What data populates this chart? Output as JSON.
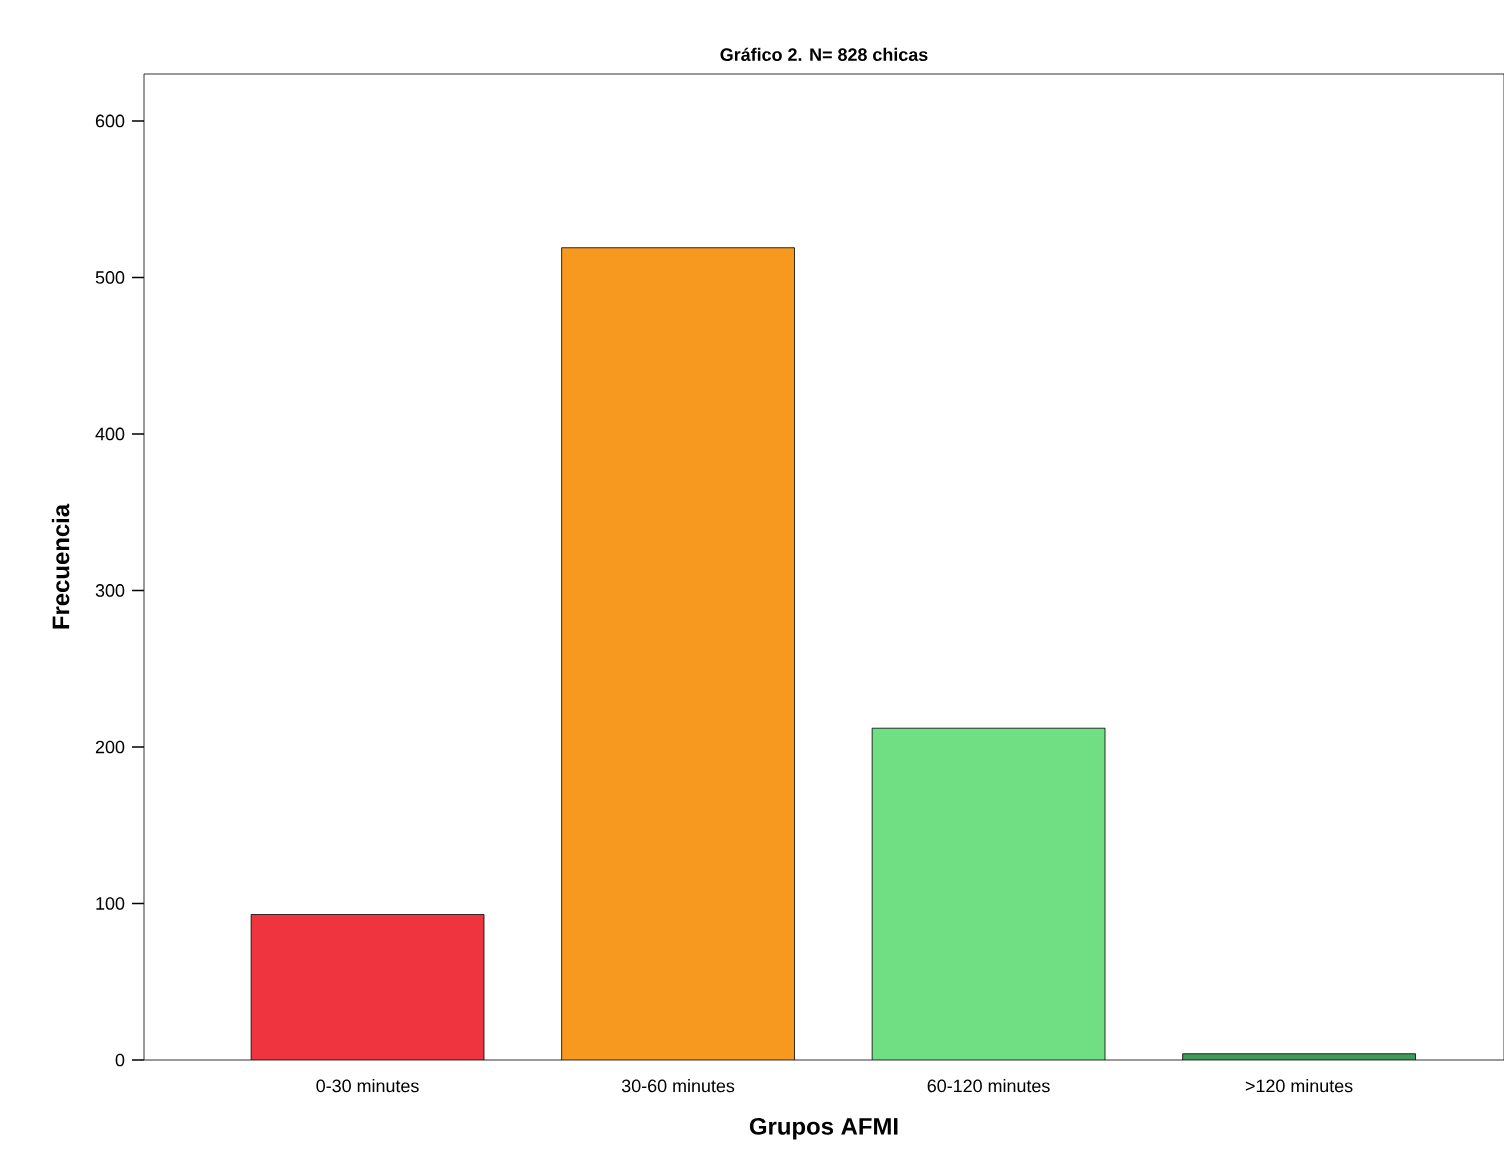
{
  "chart_data": {
    "type": "bar",
    "title": "Gráfico 2. N= 828 chicas",
    "xlabel": "Grupos AFMI",
    "ylabel": "Frecuencia",
    "categories": [
      "0-30 minutes",
      "30-60 minutes",
      "60-120 minutes",
      ">120 minutes"
    ],
    "values": [
      93,
      519,
      212,
      4
    ],
    "colors": [
      "#ef333f",
      "#f7991f",
      "#70de83",
      "#3f9a5a"
    ],
    "ylim": [
      0,
      630
    ],
    "yticks": [
      0,
      100,
      200,
      300,
      400,
      500,
      600
    ]
  }
}
